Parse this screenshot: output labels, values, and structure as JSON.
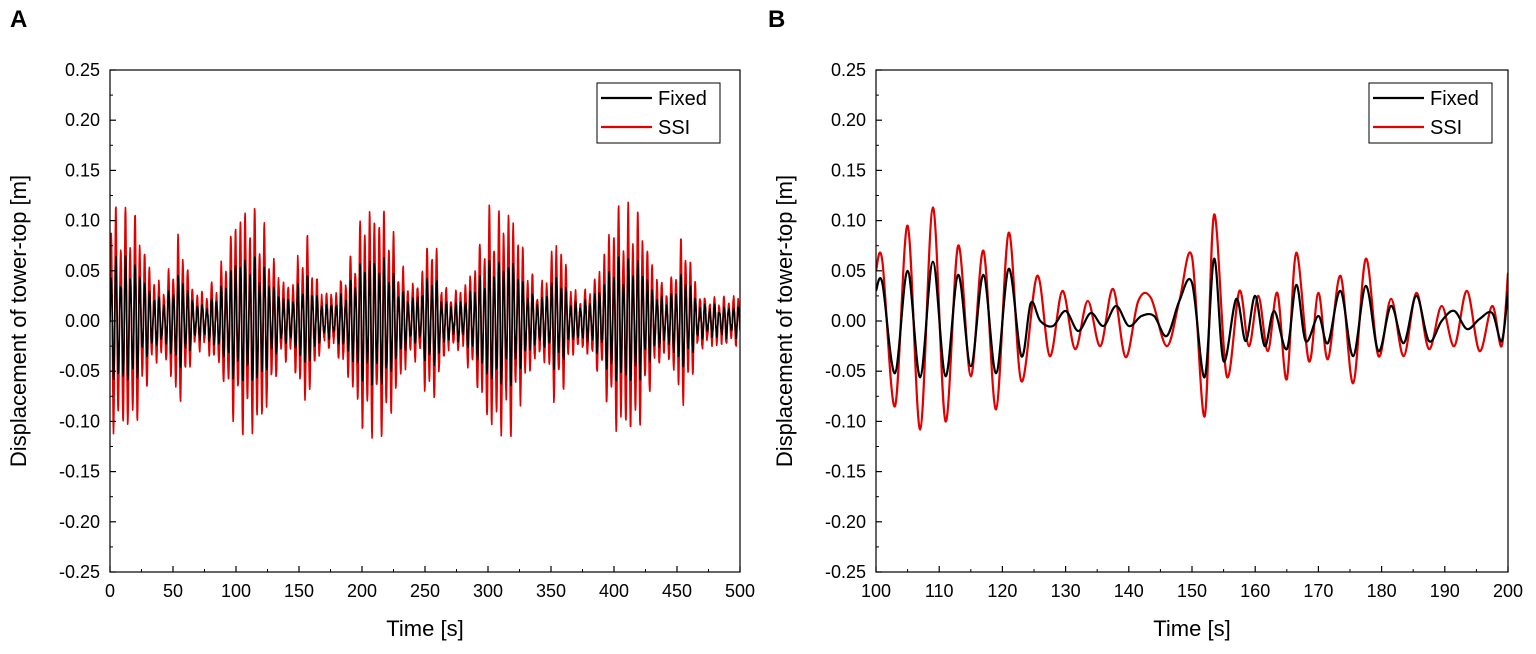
{
  "panels": [
    {
      "letter": "A"
    },
    {
      "letter": "B"
    }
  ],
  "chart_data": [
    {
      "type": "line",
      "panel": "A",
      "xlabel": "Time [s]",
      "ylabel": "Displacement of tower-top [m]",
      "xlim": [
        0,
        500
      ],
      "ylim": [
        -0.25,
        0.25
      ],
      "xticks": [
        "0",
        "50",
        "100",
        "150",
        "200",
        "250",
        "300",
        "350",
        "400",
        "450",
        "500"
      ],
      "yticks": [
        "0.25",
        "0.20",
        "0.15",
        "0.10",
        "0.05",
        "0.00",
        "-0.05",
        "-0.10",
        "-0.15",
        "-0.20",
        "-0.25"
      ],
      "legend": "top-right",
      "series": [
        {
          "name": "Fixed",
          "color": "#000000",
          "period_s": 3.8,
          "peak_times": [
            10,
            110,
            210,
            310,
            410
          ],
          "peak_amplitude": 0.06,
          "base_amplitude": 0.015
        },
        {
          "name": "SSI",
          "color": "#e00000",
          "period_s": 3.8,
          "peak_times": [
            10,
            110,
            210,
            310,
            410
          ],
          "peak_amplitude": 0.11,
          "base_amplitude": 0.025
        }
      ]
    },
    {
      "type": "line",
      "panel": "B",
      "xlabel": "Time [s]",
      "ylabel": "Displacement of tower-top [m]",
      "xlim": [
        100,
        200
      ],
      "ylim": [
        -0.25,
        0.25
      ],
      "xticks": [
        "100",
        "110",
        "120",
        "130",
        "140",
        "150",
        "160",
        "170",
        "180",
        "190",
        "200"
      ],
      "yticks": [
        "0.25",
        "0.20",
        "0.15",
        "0.10",
        "0.05",
        "0.00",
        "-0.05",
        "-0.10",
        "-0.15",
        "-0.20",
        "-0.25"
      ],
      "legend": "top-right",
      "series": [
        {
          "name": "Fixed",
          "color": "#000000",
          "points": [
            [
              100,
              0.03
            ],
            [
              101,
              0.038
            ],
            [
              103,
              -0.052
            ],
            [
              105,
              0.05
            ],
            [
              107,
              -0.056
            ],
            [
              109,
              0.059
            ],
            [
              111,
              -0.055
            ],
            [
              113,
              0.046
            ],
            [
              115,
              -0.045
            ],
            [
              117,
              0.046
            ],
            [
              119,
              -0.052
            ],
            [
              121,
              0.052
            ],
            [
              123,
              -0.035
            ],
            [
              124.5,
              0.018
            ],
            [
              126,
              0.0
            ],
            [
              128,
              -0.005
            ],
            [
              130,
              0.01
            ],
            [
              132,
              -0.01
            ],
            [
              134,
              0.008
            ],
            [
              136,
              -0.005
            ],
            [
              138,
              0.015
            ],
            [
              140,
              -0.005
            ],
            [
              142,
              0.005
            ],
            [
              144,
              0.005
            ],
            [
              146,
              -0.015
            ],
            [
              148,
              0.02
            ],
            [
              150,
              0.038
            ],
            [
              152,
              -0.056
            ],
            [
              153.5,
              0.062
            ],
            [
              155,
              -0.04
            ],
            [
              157,
              0.022
            ],
            [
              158.5,
              -0.02
            ],
            [
              160,
              0.025
            ],
            [
              161.5,
              -0.025
            ],
            [
              163,
              0.01
            ],
            [
              165,
              -0.028
            ],
            [
              166.5,
              0.036
            ],
            [
              168,
              -0.02
            ],
            [
              170,
              0.005
            ],
            [
              171.5,
              -0.022
            ],
            [
              173.5,
              0.03
            ],
            [
              175.5,
              -0.035
            ],
            [
              177.5,
              0.035
            ],
            [
              179.5,
              -0.03
            ],
            [
              181.5,
              0.015
            ],
            [
              183.5,
              -0.022
            ],
            [
              185.5,
              0.025
            ],
            [
              187.5,
              -0.02
            ],
            [
              189.5,
              0.0
            ],
            [
              191.5,
              0.01
            ],
            [
              193.5,
              -0.008
            ],
            [
              195.5,
              0.002
            ],
            [
              197.5,
              0.008
            ],
            [
              199,
              -0.02
            ],
            [
              200,
              0.03
            ]
          ]
        },
        {
          "name": "SSI",
          "color": "#e00000",
          "points": [
            [
              100,
              0.05
            ],
            [
              101,
              0.06
            ],
            [
              103,
              -0.085
            ],
            [
              105,
              0.095
            ],
            [
              107,
              -0.108
            ],
            [
              109,
              0.113
            ],
            [
              111,
              -0.1
            ],
            [
              113,
              0.075
            ],
            [
              115,
              -0.055
            ],
            [
              117,
              0.07
            ],
            [
              119,
              -0.088
            ],
            [
              121,
              0.088
            ],
            [
              123,
              -0.06
            ],
            [
              125.5,
              0.045
            ],
            [
              127.5,
              -0.035
            ],
            [
              129.5,
              0.03
            ],
            [
              131.5,
              -0.028
            ],
            [
              133.5,
              0.02
            ],
            [
              135.5,
              -0.025
            ],
            [
              137.5,
              0.032
            ],
            [
              139.5,
              -0.036
            ],
            [
              141.5,
              0.02
            ],
            [
              143.5,
              0.023
            ],
            [
              146,
              -0.025
            ],
            [
              148,
              0.02
            ],
            [
              150,
              0.064
            ],
            [
              152,
              -0.095
            ],
            [
              153.5,
              0.106
            ],
            [
              155.5,
              -0.055
            ],
            [
              157.5,
              0.03
            ],
            [
              159,
              -0.025
            ],
            [
              160.5,
              0.025
            ],
            [
              162,
              -0.03
            ],
            [
              163.5,
              0.028
            ],
            [
              165,
              -0.058
            ],
            [
              166.5,
              0.068
            ],
            [
              168.5,
              -0.04
            ],
            [
              170,
              0.028
            ],
            [
              171.5,
              -0.038
            ],
            [
              173.5,
              0.045
            ],
            [
              175.5,
              -0.062
            ],
            [
              177.5,
              0.062
            ],
            [
              179.5,
              -0.035
            ],
            [
              181.5,
              0.022
            ],
            [
              183.5,
              -0.035
            ],
            [
              185.5,
              0.028
            ],
            [
              187.5,
              -0.028
            ],
            [
              189.5,
              0.015
            ],
            [
              191.5,
              -0.025
            ],
            [
              193.5,
              0.03
            ],
            [
              195.5,
              -0.03
            ],
            [
              197.5,
              0.015
            ],
            [
              199,
              -0.025
            ],
            [
              200,
              0.048
            ]
          ]
        }
      ]
    }
  ]
}
